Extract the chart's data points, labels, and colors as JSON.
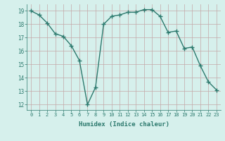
{
  "x": [
    0,
    1,
    2,
    3,
    4,
    5,
    6,
    7,
    8,
    9,
    10,
    11,
    12,
    13,
    14,
    15,
    16,
    17,
    18,
    19,
    20,
    21,
    22,
    23
  ],
  "y": [
    19,
    18.7,
    18.1,
    17.3,
    17.1,
    16.4,
    15.3,
    12.0,
    13.3,
    18.0,
    18.6,
    18.7,
    18.9,
    18.9,
    19.1,
    19.1,
    18.6,
    17.4,
    17.5,
    16.2,
    16.3,
    14.9,
    13.7,
    13.1
  ],
  "line_color": "#2d7a6e",
  "marker": "+",
  "marker_size": 5,
  "bg_color": "#d6f0ec",
  "grid_color": "#c4a8a8",
  "xlabel": "Humidex (Indice chaleur)",
  "ylabel_ticks": [
    12,
    13,
    14,
    15,
    16,
    17,
    18,
    19
  ],
  "xticks": [
    0,
    1,
    2,
    3,
    4,
    5,
    6,
    7,
    8,
    9,
    10,
    11,
    12,
    13,
    14,
    15,
    16,
    17,
    18,
    19,
    20,
    21,
    22,
    23
  ],
  "xlim": [
    -0.5,
    23.5
  ],
  "ylim": [
    11.6,
    19.5
  ]
}
